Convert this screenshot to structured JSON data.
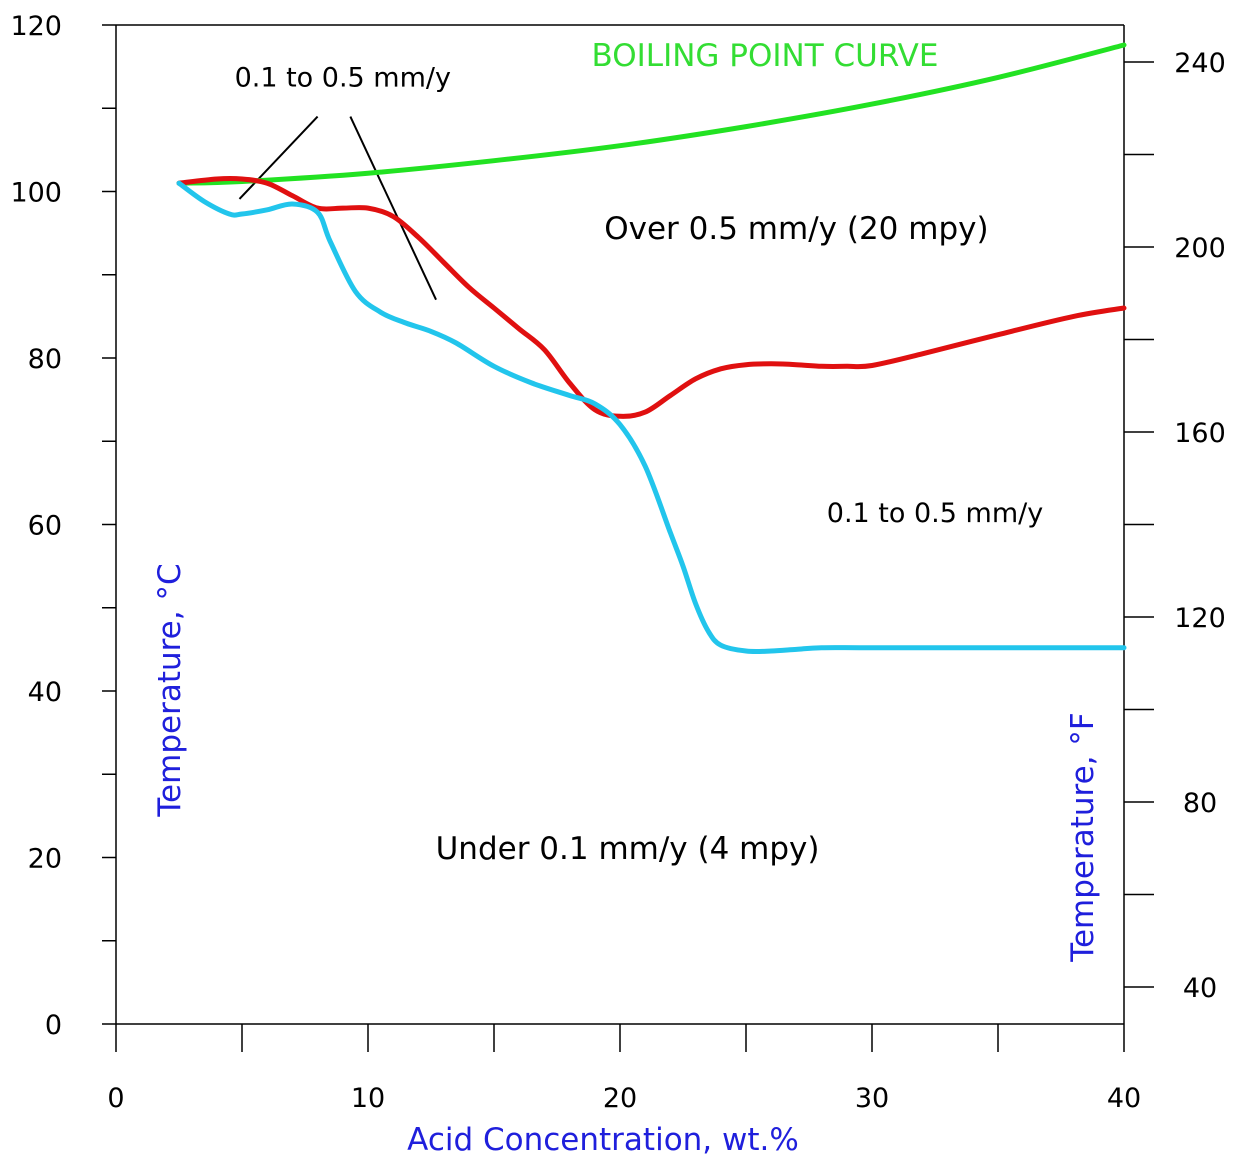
{
  "chart_data": {
    "type": "line",
    "title": "",
    "xlabel": "Acid Concentration, wt.%",
    "ylabel": "Temperature, °C",
    "ylabel_right": "Temperature, °F",
    "xlim": [
      0,
      40
    ],
    "ylim": [
      0,
      120
    ],
    "ylim_right": [
      32,
      248
    ],
    "x_ticks": [
      0,
      10,
      20,
      30,
      40
    ],
    "y_ticks": [
      0,
      20,
      40,
      60,
      80,
      100,
      120
    ],
    "y_ticks_right": [
      40,
      80,
      120,
      160,
      200,
      240
    ],
    "grid": false,
    "legend": "none",
    "series": [
      {
        "name": "BOILING POINT CURVE",
        "color": "#22e222",
        "label_color": "#33dd33",
        "x": [
          2.5,
          5,
          10,
          15,
          20,
          25,
          30,
          35,
          40
        ],
        "y": [
          101,
          101.2,
          102.2,
          103.7,
          105.5,
          107.8,
          110.5,
          113.7,
          117.6
        ]
      },
      {
        "color": "#e01010",
        "x": [
          2.5,
          4,
          5,
          6,
          7,
          8,
          9,
          10,
          11,
          12,
          13,
          14,
          15,
          16,
          17,
          18,
          19,
          20,
          21,
          22,
          23,
          24,
          25,
          26,
          27,
          28,
          29,
          30,
          32,
          35,
          38,
          40
        ],
        "y": [
          101,
          101.5,
          101.5,
          101,
          99.5,
          98,
          98,
          98,
          97,
          94.5,
          91.5,
          88.5,
          86,
          83.5,
          81,
          77,
          73.8,
          73,
          73.5,
          75.5,
          77.5,
          78.7,
          79.2,
          79.3,
          79.2,
          79,
          79,
          79.1,
          80.5,
          82.8,
          85,
          86
        ]
      },
      {
        "color": "#22c5ec",
        "x": [
          2.5,
          3.5,
          4.5,
          5,
          6,
          7,
          8,
          8.5,
          9.5,
          10.5,
          11.5,
          12.5,
          13.5,
          15,
          16.5,
          18,
          19,
          20,
          21,
          22,
          22.5,
          23,
          23.5,
          24,
          25,
          26,
          27,
          28,
          30,
          35,
          40
        ],
        "y": [
          101,
          98.8,
          97.3,
          97.3,
          97.8,
          98.5,
          97.5,
          94,
          88,
          85.5,
          84.2,
          83.2,
          81.8,
          79,
          77,
          75.5,
          74.5,
          72,
          67,
          59,
          55,
          50.5,
          47.2,
          45.5,
          44.8,
          44.8,
          45,
          45.2,
          45.2,
          45.2,
          45.2
        ]
      }
    ],
    "annotations": [
      {
        "text": "0.1 to 0.5 mm/y",
        "x": 9,
        "y": 113.8
      },
      {
        "text": "Over 0.5 mm/y (20 mpy)",
        "x": 27,
        "y": 95.5
      },
      {
        "text": "0.1 to 0.5 mm/y",
        "x": 32.5,
        "y": 61.5
      },
      {
        "text": "Under 0.1 mm/y (4 mpy)",
        "x": 20.3,
        "y": 21
      }
    ],
    "leader_lines": [
      {
        "from": [
          8,
          109
        ],
        "to": [
          4.9,
          99.1
        ]
      },
      {
        "from": [
          9.3,
          109
        ],
        "to": [
          12.7,
          87
        ]
      }
    ],
    "axis_title_color": "#1f1fdc"
  }
}
